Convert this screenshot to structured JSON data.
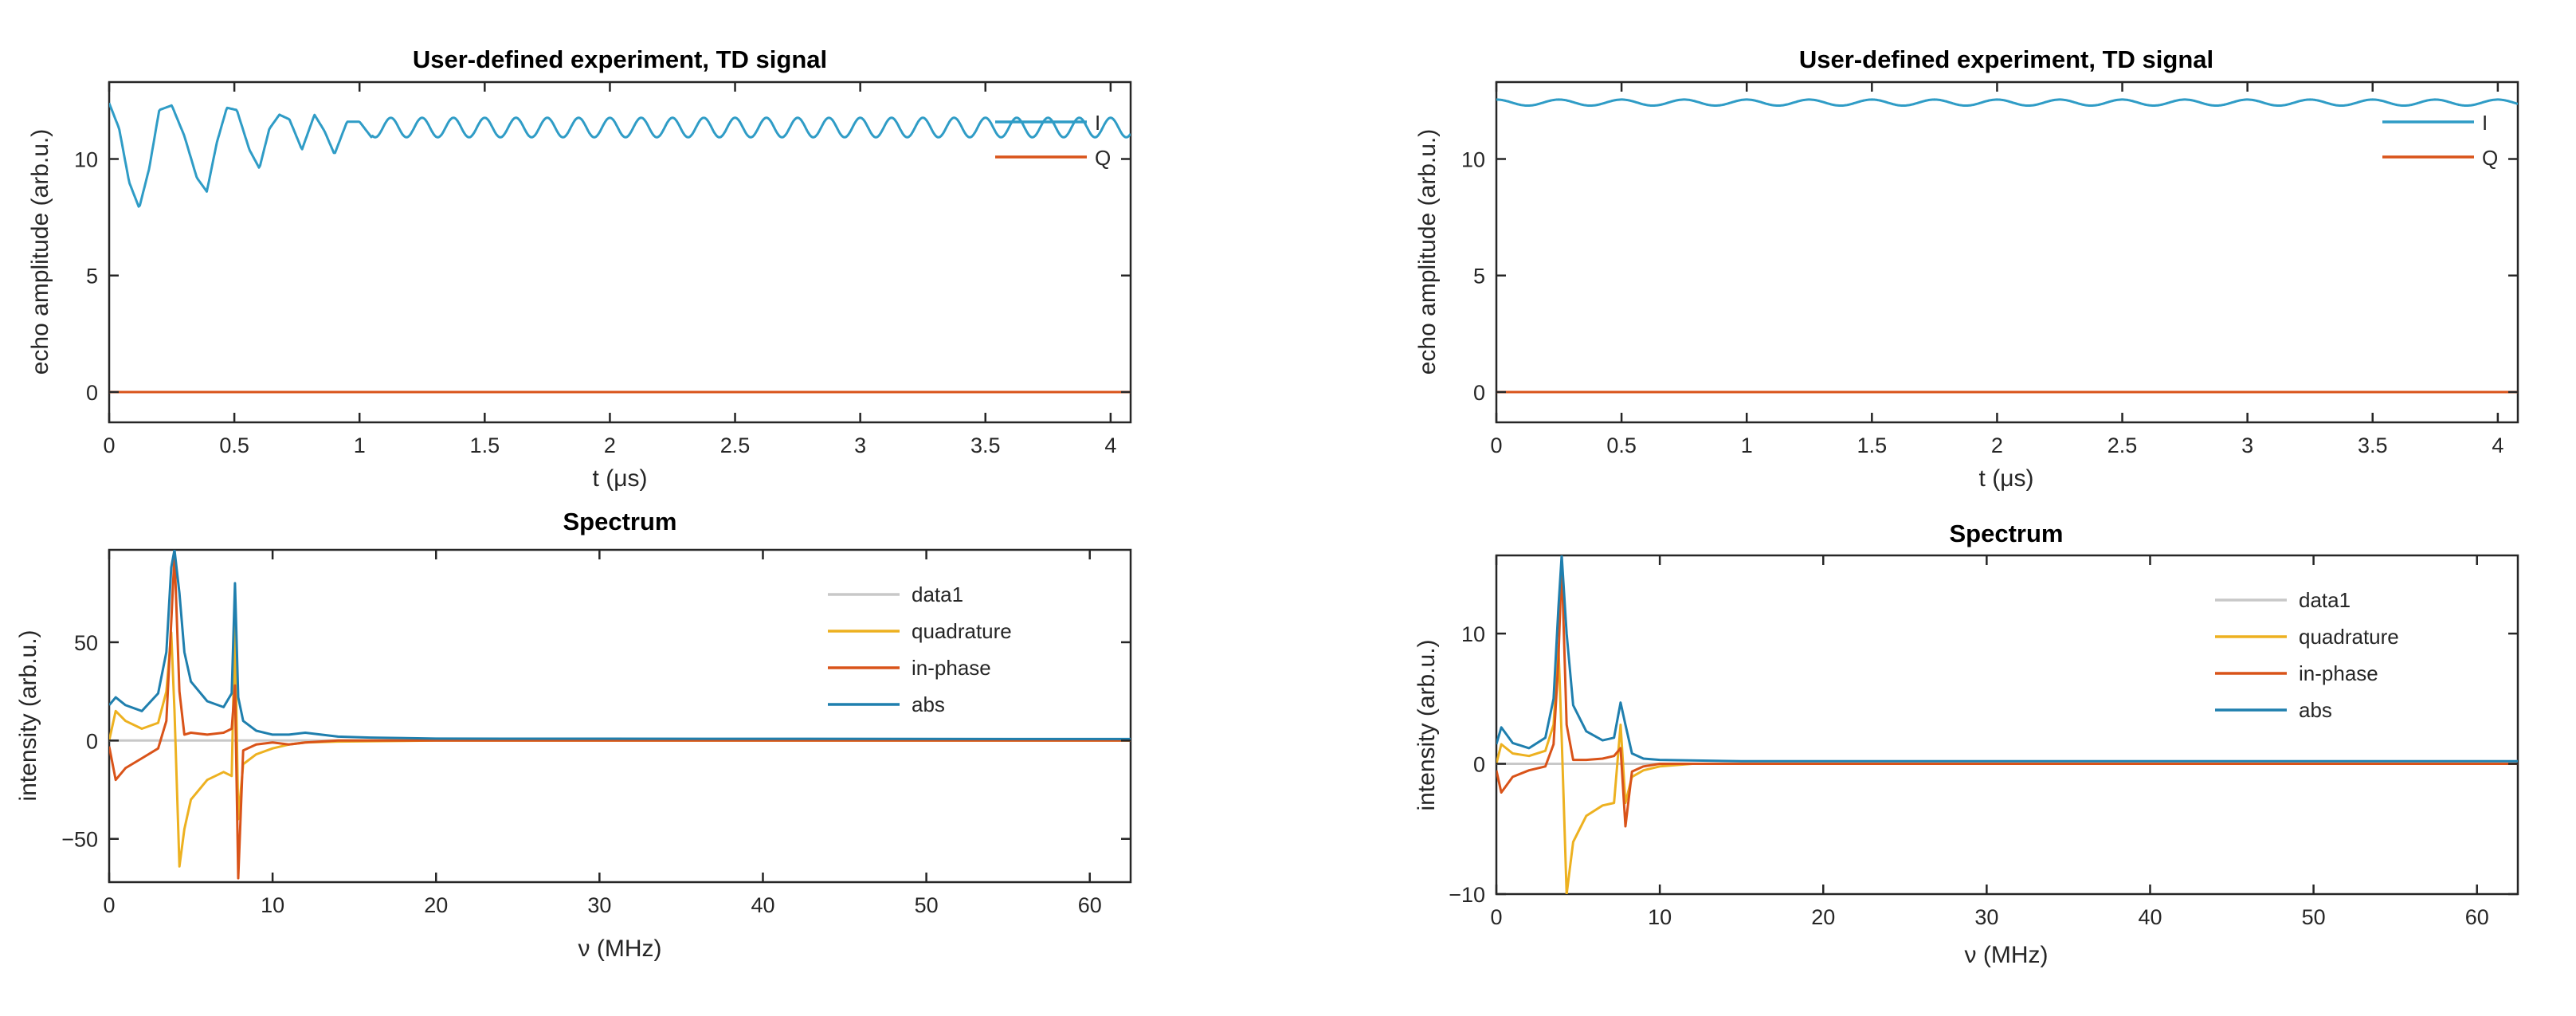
{
  "colors": {
    "blue": "#2f9cc6",
    "orange": "#d95319",
    "yellow": "#edb120",
    "gray": "#c8c8c8",
    "darkblue": "#1f7fae"
  },
  "chart_data": [
    {
      "type": "line",
      "title": "User-defined experiment, TD signal",
      "xlabel": "t (μs)",
      "ylabel": "echo amplitude (arb.u.)",
      "xlim": [
        0,
        4.08
      ],
      "ylim": [
        -1.3,
        13.3
      ],
      "xticks": [
        0,
        0.5,
        1,
        1.5,
        2,
        2.5,
        3,
        3.5,
        4
      ],
      "xtick_labels": [
        "0",
        "0.5",
        "1",
        "1.5",
        "2",
        "2.5",
        "3",
        "3.5",
        "4"
      ],
      "yticks": [
        0,
        5,
        10
      ],
      "ytick_labels": [
        "0",
        "5",
        "10"
      ],
      "legend": "top-right",
      "grid": false,
      "series": [
        {
          "name": "I",
          "color": "#2f9cc6",
          "x": [
            0,
            0.04,
            0.08,
            0.12,
            0.16,
            0.2,
            0.25,
            0.3,
            0.35,
            0.39,
            0.43,
            0.47,
            0.51,
            0.56,
            0.6,
            0.64,
            0.68,
            0.72,
            0.77,
            0.82,
            0.86,
            0.9,
            0.95,
            1,
            1.05,
            1.1,
            1.2,
            1.3,
            1.4,
            1.6,
            1.8,
            2.0,
            2.2,
            2.4,
            2.6,
            2.8,
            3.0,
            3.2,
            3.4,
            3.6,
            3.8,
            4.0,
            4.08
          ],
          "y": [
            12.4,
            11.3,
            9.0,
            7.9,
            9.6,
            12.1,
            12.3,
            11.0,
            9.2,
            8.6,
            10.7,
            12.2,
            12.1,
            10.4,
            9.6,
            11.3,
            11.9,
            11.7,
            10.4,
            11.9,
            11.2,
            10.2,
            11.6,
            11.6,
            10.9,
            11.7,
            11.0,
            11.7,
            11.0,
            11.6,
            11.1,
            11.6,
            11.1,
            11.6,
            11.1,
            11.6,
            11.1,
            11.6,
            11.1,
            11.6,
            11.1,
            11.7,
            10.9
          ],
          "oscillation_period_us": 0.125
        },
        {
          "name": "Q",
          "color": "#d95319",
          "x": [
            0,
            4.08
          ],
          "y": [
            0,
            0
          ]
        }
      ]
    },
    {
      "type": "line",
      "title": "User-defined experiment, TD signal",
      "xlabel": "t (μs)",
      "ylabel": "echo amplitude (arb.u.)",
      "xlim": [
        0,
        4.08
      ],
      "ylim": [
        -1.3,
        13.3
      ],
      "xticks": [
        0,
        0.5,
        1,
        1.5,
        2,
        2.5,
        3,
        3.5,
        4
      ],
      "xtick_labels": [
        "0",
        "0.5",
        "1",
        "1.5",
        "2",
        "2.5",
        "3",
        "3.5",
        "4"
      ],
      "yticks": [
        0,
        5,
        10
      ],
      "ytick_labels": [
        "0",
        "5",
        "10"
      ],
      "legend": "top-right",
      "grid": false,
      "series": [
        {
          "name": "I",
          "color": "#2f9cc6",
          "x": [
            0,
            0.1,
            0.2,
            0.3,
            0.4,
            0.6,
            0.8,
            1.0,
            1.5,
            2.0,
            2.5,
            3.0,
            3.5,
            4.0,
            4.08
          ],
          "y": [
            12.5,
            12.4,
            12.6,
            12.3,
            12.5,
            12.3,
            12.5,
            12.3,
            12.4,
            12.4,
            12.5,
            12.4,
            12.4,
            12.5,
            12.5
          ],
          "oscillation_period_us": 0.25
        },
        {
          "name": "Q",
          "color": "#d95319",
          "x": [
            0,
            4.08
          ],
          "y": [
            0,
            0
          ]
        }
      ]
    },
    {
      "type": "line",
      "title": "Spectrum",
      "xlabel": "ν (MHz)",
      "ylabel": "intensity (arb.u.)",
      "xlim": [
        0,
        62.5
      ],
      "ylim": [
        -72,
        97
      ],
      "xticks": [
        0,
        10,
        20,
        30,
        40,
        50,
        60
      ],
      "xtick_labels": [
        "0",
        "10",
        "20",
        "30",
        "40",
        "50",
        "60"
      ],
      "yticks": [
        -50,
        0,
        50
      ],
      "ytick_labels": [
        "−50",
        "0",
        "50"
      ],
      "legend": "top-right",
      "grid": false,
      "series": [
        {
          "name": "data1",
          "color": "#c8c8c8",
          "x": [
            0,
            62.5
          ],
          "y": [
            0,
            0
          ]
        },
        {
          "name": "quadrature",
          "color": "#edb120",
          "x": [
            0,
            0.4,
            1.0,
            2.0,
            3.0,
            3.5,
            3.8,
            4.0,
            4.3,
            4.6,
            5.0,
            6.0,
            7.0,
            7.5,
            7.7,
            7.9,
            8.2,
            9.0,
            10.0,
            11.0,
            12.0,
            14.0,
            20.0,
            62.5
          ],
          "y": [
            0,
            15,
            10,
            6,
            9,
            25,
            55,
            15,
            -64,
            -45,
            -30,
            -20,
            -16,
            -18,
            60,
            -40,
            -12,
            -7,
            -4,
            -2,
            -1,
            -0.5,
            0,
            0
          ]
        },
        {
          "name": "in-phase",
          "color": "#d95319",
          "x": [
            0,
            0.4,
            1.0,
            2.0,
            3.0,
            3.5,
            3.8,
            4.0,
            4.3,
            4.6,
            5.0,
            6.0,
            7.0,
            7.5,
            7.7,
            7.9,
            8.2,
            9.0,
            10.0,
            11.0,
            12.0,
            14.0,
            62.5
          ],
          "y": [
            -3,
            -20,
            -14,
            -9,
            -4,
            10,
            60,
            95,
            25,
            3,
            4,
            3,
            4,
            6,
            28,
            -70,
            -5,
            -2,
            -1,
            -2,
            -1,
            0,
            0
          ]
        },
        {
          "name": "abs",
          "color": "#1f7fae",
          "x": [
            0,
            0.4,
            1.0,
            2.0,
            3.0,
            3.5,
            3.8,
            4.0,
            4.3,
            4.6,
            5.0,
            6.0,
            7.0,
            7.5,
            7.7,
            7.9,
            8.2,
            9.0,
            10.0,
            11.0,
            12.0,
            14.0,
            16.0,
            20.0,
            62.5
          ],
          "y": [
            18,
            22,
            18,
            15,
            24,
            45,
            88,
            97,
            75,
            45,
            30,
            20,
            17,
            24,
            80,
            22,
            10,
            5,
            3,
            3,
            4,
            2,
            1.5,
            1,
            0.8
          ]
        }
      ]
    },
    {
      "type": "line",
      "title": "Spectrum",
      "xlabel": "ν (MHz)",
      "ylabel": "intensity (arb.u.)",
      "xlim": [
        0,
        62.5
      ],
      "ylim": [
        -10,
        16
      ],
      "xticks": [
        0,
        10,
        20,
        30,
        40,
        50,
        60
      ],
      "xtick_labels": [
        "0",
        "10",
        "20",
        "30",
        "40",
        "50",
        "60"
      ],
      "yticks": [
        -10,
        0,
        10
      ],
      "ytick_labels": [
        "−10",
        "0",
        "10"
      ],
      "legend": "top-right",
      "grid": false,
      "series": [
        {
          "name": "data1",
          "color": "#c8c8c8",
          "x": [
            0,
            62.5
          ],
          "y": [
            0,
            0
          ]
        },
        {
          "name": "quadrature",
          "color": "#edb120",
          "x": [
            0,
            0.3,
            1.0,
            2.0,
            3.0,
            3.5,
            3.8,
            4.0,
            4.3,
            4.7,
            5.5,
            6.5,
            7.2,
            7.6,
            7.9,
            8.3,
            9.0,
            10.0,
            12.0,
            62.5
          ],
          "y": [
            0,
            1.5,
            0.8,
            0.6,
            1.0,
            3.0,
            9.0,
            2.0,
            -10.0,
            -6.0,
            -4.0,
            -3.2,
            -3.0,
            3.0,
            -3.0,
            -1.0,
            -0.5,
            -0.2,
            0,
            0
          ]
        },
        {
          "name": "in-phase",
          "color": "#d95319",
          "x": [
            0,
            0.3,
            1.0,
            2.0,
            3.0,
            3.5,
            3.8,
            4.0,
            4.3,
            4.7,
            5.5,
            6.5,
            7.2,
            7.6,
            7.9,
            8.3,
            9.0,
            10.0,
            62.5
          ],
          "y": [
            -0.5,
            -2.2,
            -1.0,
            -0.5,
            -0.2,
            1.5,
            8.0,
            15.5,
            3.0,
            0.3,
            0.3,
            0.4,
            0.6,
            1.2,
            -4.8,
            -0.6,
            -0.2,
            0,
            0
          ]
        },
        {
          "name": "abs",
          "color": "#1f7fae",
          "x": [
            0,
            0.3,
            1.0,
            2.0,
            3.0,
            3.5,
            3.8,
            4.0,
            4.3,
            4.7,
            5.5,
            6.5,
            7.2,
            7.6,
            7.9,
            8.3,
            9.0,
            10.0,
            15.0,
            62.5
          ],
          "y": [
            1.5,
            2.8,
            1.6,
            1.2,
            2.0,
            5.0,
            12.0,
            16.0,
            10.0,
            4.5,
            2.5,
            1.8,
            2.0,
            4.7,
            3.0,
            0.8,
            0.4,
            0.3,
            0.2,
            0.2
          ]
        }
      ]
    }
  ]
}
